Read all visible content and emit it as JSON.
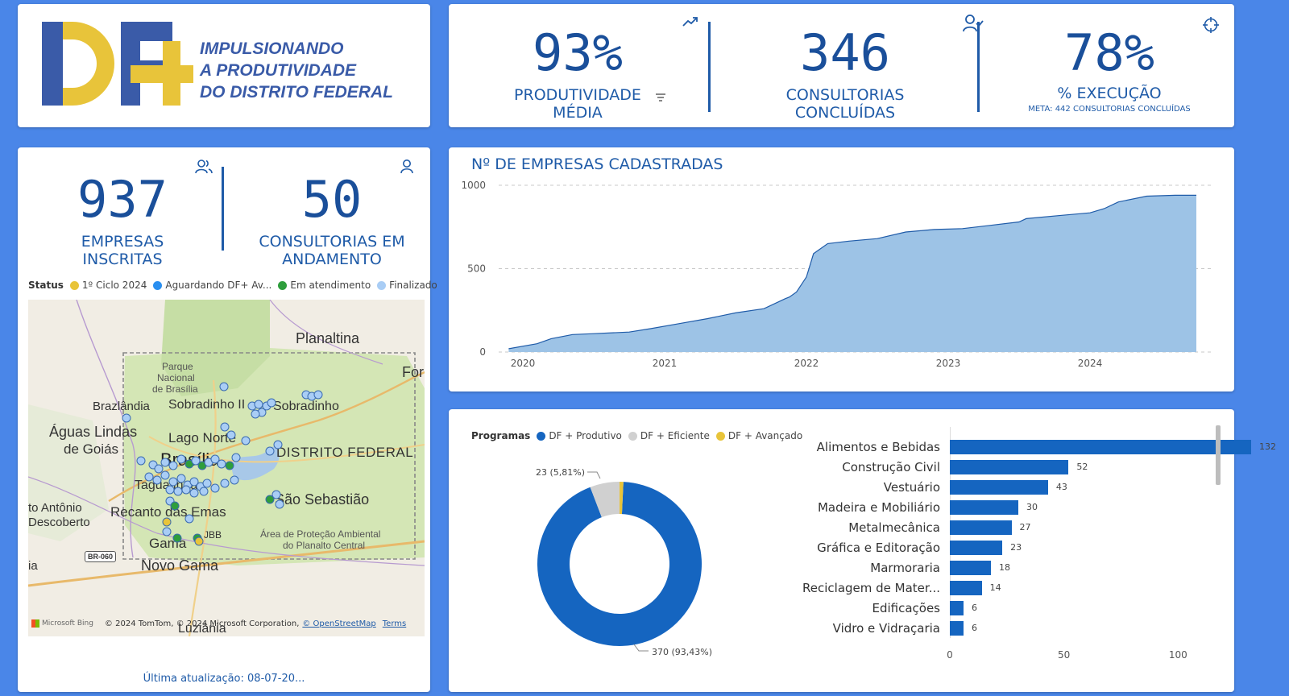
{
  "logo": {
    "mark": "DF+",
    "line1": "IMPULSIONANDO",
    "line2": "A PRODUTIVIDADE",
    "line3": "DO DISTRITO FEDERAL"
  },
  "kpi_top": [
    {
      "value": "93%",
      "label1": "PRODUTIVIDADE",
      "label2": "MÉDIA",
      "icon": "trend-up-icon"
    },
    {
      "value": "346",
      "label1": "CONSULTORIAS",
      "label2": "CONCLUÍDAS",
      "icon": "user-check-icon"
    },
    {
      "value": "78%",
      "label1": "% EXECUÇÃO",
      "label2": "META: 442 CONSULTORIAS CONCLUÍDAS",
      "icon": "target-icon"
    }
  ],
  "kpi_left": [
    {
      "value": "937",
      "label1": "EMPRESAS",
      "label2": "INSCRITAS",
      "icon": "users-icon"
    },
    {
      "value": "50",
      "label1": "CONSULTORIAS EM",
      "label2": "ANDAMENTO",
      "icon": "user-icon"
    }
  ],
  "map": {
    "legend_title": "Status",
    "legend": [
      {
        "label": "1º Ciclo 2024",
        "color": "#e8c43a"
      },
      {
        "label": "Aguardando DF+ Av...",
        "color": "#2a8ff0"
      },
      {
        "label": "Em atendimento",
        "color": "#2e9e3c"
      },
      {
        "label": "Finalizado",
        "color": "#a9cdf5"
      }
    ],
    "labels": [
      "Planaltina",
      "Parque",
      "Nacional",
      "de Brasília",
      "For",
      "Brazlândia",
      "Sobradinho II",
      "Sobradinho",
      "Águas Lindas",
      "de Goiás",
      "Lago Norte",
      "DISTRITO FEDERAL",
      "Brasília",
      "Taguatinga",
      "São Sebastião",
      "to Antônio",
      "Descoberto",
      "Recanto das Emas",
      "JBB",
      "Gama",
      "Área de Proteção Ambiental",
      "do Planalto Central",
      "BR-060",
      "ia",
      "Novo Gama",
      "Luziânia"
    ],
    "attribution": "© 2024 TomTom, © 2024 Microsoft Corporation,",
    "osm": "© OpenStreetMap",
    "terms": "Terms",
    "bing": "Microsoft Bing"
  },
  "footer": {
    "update": "Última atualização: 08-07-20..."
  },
  "chart_data": [
    {
      "type": "area",
      "title": "Nº DE EMPRESAS CADASTRADAS",
      "x_ticks": [
        "2020",
        "2021",
        "2022",
        "2023",
        "2024"
      ],
      "y_ticks": [
        "1000",
        "500",
        "0"
      ],
      "ylim": [
        0,
        1000
      ],
      "x": [
        2019.9,
        2020.1,
        2020.2,
        2020.35,
        2020.5,
        2020.75,
        2020.9,
        2021.1,
        2021.3,
        2021.5,
        2021.7,
        2021.85,
        2021.88,
        2021.93,
        2022.0,
        2022.05,
        2022.15,
        2022.3,
        2022.5,
        2022.7,
        2022.9,
        2023.1,
        2023.3,
        2023.5,
        2023.55,
        2023.8,
        2024.0,
        2024.1,
        2024.2,
        2024.4,
        2024.6,
        2024.75
      ],
      "y": [
        20,
        50,
        80,
        105,
        110,
        120,
        140,
        170,
        200,
        235,
        260,
        320,
        330,
        360,
        450,
        590,
        650,
        665,
        680,
        720,
        735,
        740,
        760,
        780,
        800,
        820,
        835,
        860,
        900,
        935,
        940,
        940
      ],
      "grid": true,
      "color": "#9dc3e6",
      "line_color": "#1f5ba8"
    },
    {
      "type": "pie",
      "legend_title": "Programas",
      "legend": [
        {
          "label": "DF + Produtivo",
          "color": "#1565c0"
        },
        {
          "label": "DF + Eficiente",
          "color": "#d0d0d0"
        },
        {
          "label": "DF + Avançado",
          "color": "#e8c43a"
        }
      ],
      "slices": [
        {
          "name": "DF + Produtivo",
          "value": 370,
          "label": "370 (93,43%)",
          "color": "#1565c0"
        },
        {
          "name": "DF + Eficiente",
          "value": 23,
          "label": "23 (5,81%)",
          "color": "#d0d0d0"
        },
        {
          "name": "DF + Avançado",
          "value": 3,
          "label": "",
          "color": "#e8c43a"
        }
      ]
    },
    {
      "type": "bar",
      "orientation": "horizontal",
      "categories": [
        "Alimentos e Bebidas",
        "Construção Civil",
        "Vestuário",
        "Madeira e Mobiliário",
        "Metalmecânica",
        "Gráfica e Editoração",
        "Marmoraria",
        "Reciclagem de Mater...",
        "Edificações",
        "Vidro e Vidraçaria"
      ],
      "values": [
        132,
        52,
        43,
        30,
        27,
        23,
        18,
        14,
        6,
        6
      ],
      "x_ticks": [
        "0",
        "50",
        "100"
      ],
      "xlim": [
        0,
        150
      ],
      "color": "#1565c0"
    }
  ]
}
